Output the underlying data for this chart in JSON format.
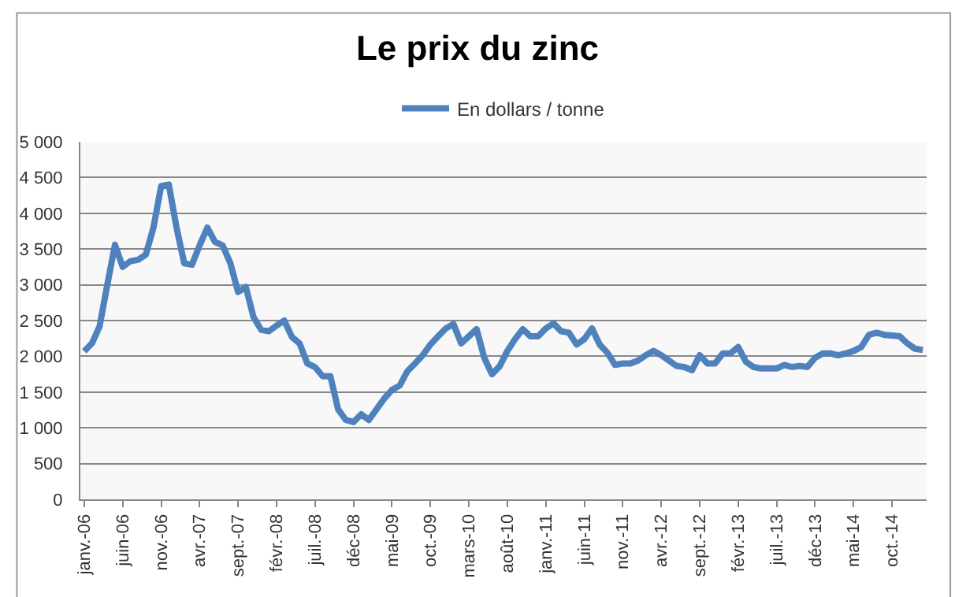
{
  "chart_data": {
    "type": "line",
    "title": "Le prix du zinc",
    "categories": [
      "janv.-06",
      null,
      null,
      null,
      null,
      "juin-06",
      null,
      null,
      null,
      null,
      "nov.-06",
      null,
      null,
      null,
      null,
      "avr.-07",
      null,
      null,
      null,
      null,
      "sept.-07",
      null,
      null,
      null,
      null,
      "févr.-08",
      null,
      null,
      null,
      null,
      "juil.-08",
      null,
      null,
      null,
      null,
      "déc-08",
      null,
      null,
      null,
      null,
      "mai-09",
      null,
      null,
      null,
      null,
      "oct.-09",
      null,
      null,
      null,
      null,
      "mars-10",
      null,
      null,
      null,
      null,
      "août-10",
      null,
      null,
      null,
      null,
      "janv.-11",
      null,
      null,
      null,
      null,
      "juin-11",
      null,
      null,
      null,
      null,
      "nov.-11",
      null,
      null,
      null,
      null,
      "avr.-12",
      null,
      null,
      null,
      null,
      "sept.-12",
      null,
      null,
      null,
      null,
      "févr.-13",
      null,
      null,
      null,
      null,
      "juil.-13",
      null,
      null,
      null,
      null,
      "déc-13",
      null,
      null,
      null,
      null,
      "mai-14",
      null,
      null,
      null,
      null,
      "oct.-14",
      null,
      null,
      null,
      null
    ],
    "series": [
      {
        "name": "En dollars / tonne",
        "color": "#4f81bd",
        "values": [
          2070,
          2180,
          2420,
          3000,
          3560,
          3250,
          3330,
          3350,
          3420,
          3800,
          4380,
          4400,
          3800,
          3300,
          3280,
          3550,
          3800,
          3600,
          3550,
          3300,
          2900,
          2970,
          2550,
          2370,
          2350,
          2430,
          2500,
          2270,
          2180,
          1900,
          1850,
          1720,
          1720,
          1260,
          1110,
          1080,
          1190,
          1110,
          1260,
          1410,
          1530,
          1590,
          1790,
          1900,
          2015,
          2165,
          2280,
          2390,
          2450,
          2180,
          2280,
          2380,
          1980,
          1750,
          1860,
          2075,
          2240,
          2380,
          2280,
          2280,
          2390,
          2460,
          2350,
          2330,
          2165,
          2240,
          2390,
          2165,
          2050,
          1880,
          1900,
          1900,
          1940,
          2015,
          2075,
          2015,
          1940,
          1865,
          1850,
          1805,
          2015,
          1900,
          1900,
          2040,
          2040,
          2130,
          1925,
          1850,
          1830,
          1830,
          1830,
          1880,
          1850,
          1865,
          1850,
          1980,
          2040,
          2040,
          2015,
          2040,
          2075,
          2130,
          2300,
          2330,
          2300,
          2290,
          2280,
          2180,
          2105,
          2090
        ]
      }
    ],
    "ylim": [
      0,
      5000
    ],
    "yticks": [
      0,
      500,
      {
        "value": 1000,
        "label": "1 000"
      },
      {
        "value": 1500,
        "label": "1 500"
      },
      {
        "value": 2000,
        "label": "2 000"
      },
      {
        "value": 2500,
        "label": "2 500"
      },
      {
        "value": 3000,
        "label": "3 000"
      },
      {
        "value": 3500,
        "label": "3 500"
      },
      {
        "value": 4000,
        "label": "4 000"
      },
      {
        "value": 4500,
        "label": "4 500"
      },
      {
        "value": 5000,
        "label": "5 000"
      }
    ],
    "grid": "y",
    "legend": "top",
    "marker": "none",
    "line_style": "solid"
  }
}
